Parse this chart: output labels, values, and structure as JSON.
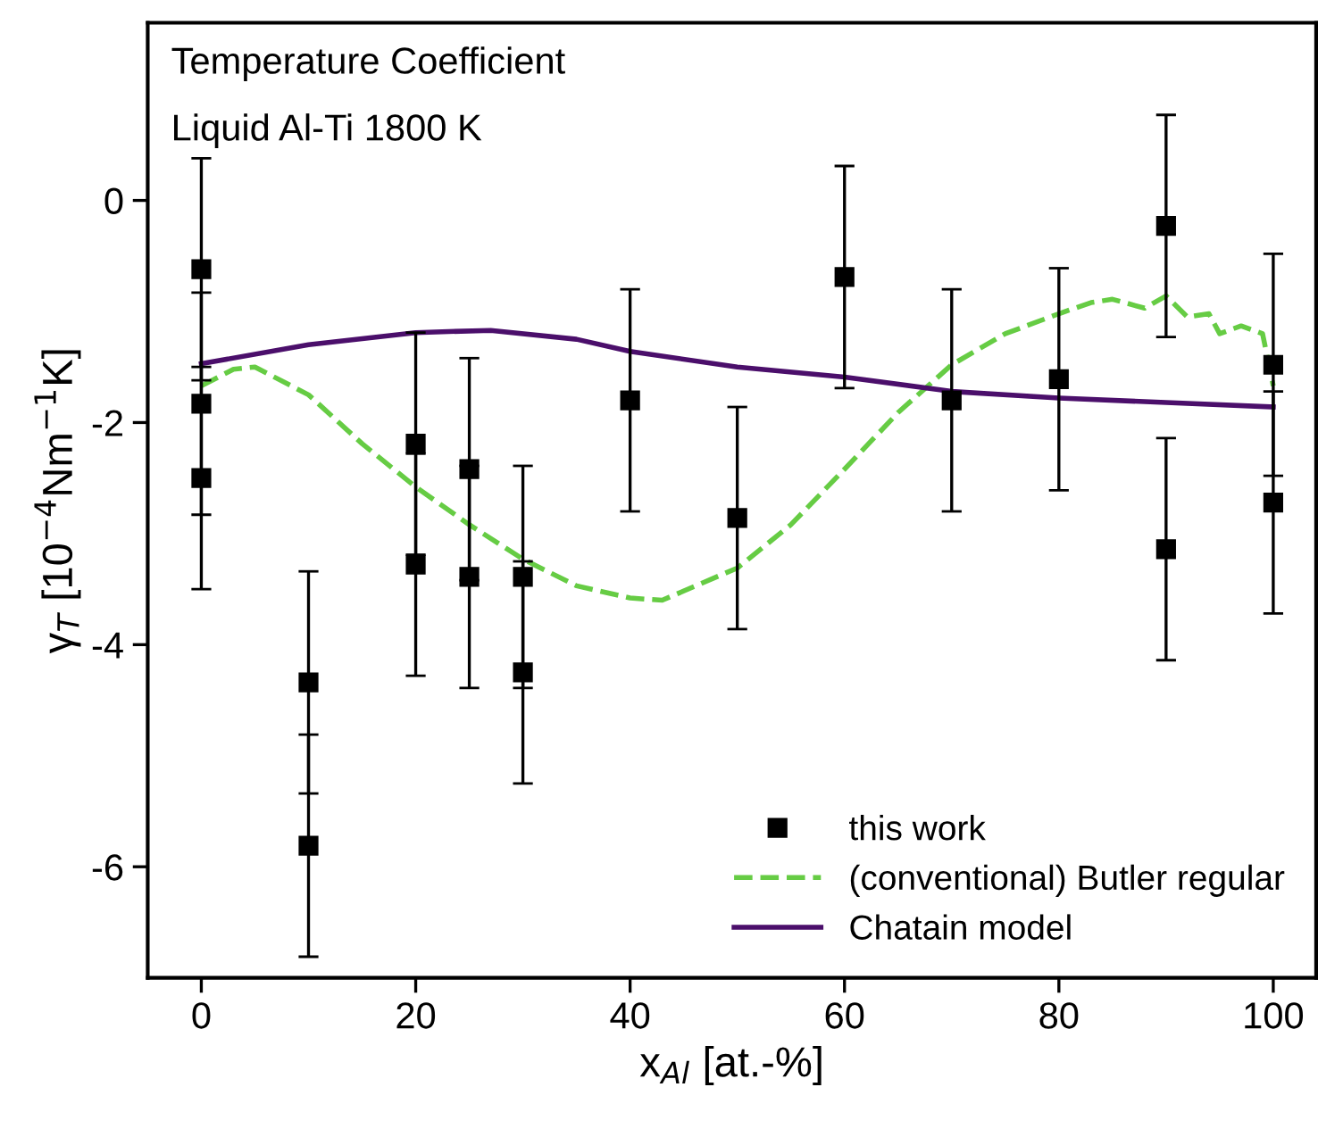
{
  "chart_data": {
    "type": "scatter",
    "xlabel": "x$_{Al}$ [at.-%]",
    "ylabel": "γ$_{T}$ [10$^{−4}$Nm$^{−1}$K]",
    "annotations": [
      "Temperature Coefficient",
      "Liquid Al-Ti 1800 K"
    ],
    "xlim": [
      -5,
      104
    ],
    "ylim": [
      -7,
      1.6
    ],
    "xticks": [
      0,
      20,
      40,
      60,
      80,
      100
    ],
    "yticks": [
      {
        "value": 0,
        "label": "0"
      },
      {
        "value": -2,
        "label": "-2"
      },
      {
        "value": -4,
        "label": "-4"
      },
      {
        "value": -6,
        "label": "-6"
      }
    ],
    "grid": false,
    "legend": "bottom right",
    "series": [
      {
        "name": "this work",
        "marker": "square",
        "color": "#000000",
        "x": [
          0,
          0,
          0,
          10,
          10,
          20,
          20,
          25,
          25,
          30,
          30,
          40,
          50,
          60,
          70,
          80,
          90,
          90,
          100,
          100
        ],
        "values": [
          -0.62,
          -1.83,
          -2.5,
          -4.34,
          -5.81,
          -2.19,
          -3.28,
          -2.42,
          -3.39,
          -3.39,
          -4.25,
          -1.8,
          -2.86,
          -0.69,
          -1.8,
          -1.61,
          -0.23,
          -3.14,
          -1.48,
          -2.72
        ],
        "errors": [
          1,
          1,
          1,
          1,
          1,
          1,
          1,
          1,
          1,
          1,
          1,
          1,
          1,
          1,
          1,
          1,
          1,
          1,
          1,
          1
        ]
      },
      {
        "name": "(conventional) Butler regular",
        "type": "line",
        "line_style": "dashed",
        "color": "#66cc44",
        "x": [
          0,
          3,
          5,
          10,
          15,
          20,
          25,
          30,
          35,
          40,
          43,
          50,
          55,
          60,
          65,
          70,
          75,
          80,
          83,
          85,
          88,
          90,
          92,
          94,
          95,
          97,
          99,
          100
        ],
        "values": [
          -1.67,
          -1.52,
          -1.5,
          -1.75,
          -2.19,
          -2.58,
          -2.92,
          -3.23,
          -3.47,
          -3.58,
          -3.6,
          -3.31,
          -2.92,
          -2.42,
          -1.91,
          -1.48,
          -1.2,
          -1.02,
          -0.92,
          -0.89,
          -0.97,
          -0.86,
          -1.05,
          -1.02,
          -1.2,
          -1.13,
          -1.2,
          -1.67
        ]
      },
      {
        "name": "Chatain model",
        "type": "line",
        "line_style": "solid",
        "color": "#4b0f6b",
        "x": [
          0,
          10,
          20,
          27,
          35,
          40,
          50,
          60,
          70,
          80,
          90,
          100
        ],
        "values": [
          -1.47,
          -1.3,
          -1.19,
          -1.17,
          -1.25,
          -1.36,
          -1.5,
          -1.59,
          -1.72,
          -1.78,
          -1.82,
          -1.86
        ]
      }
    ]
  }
}
